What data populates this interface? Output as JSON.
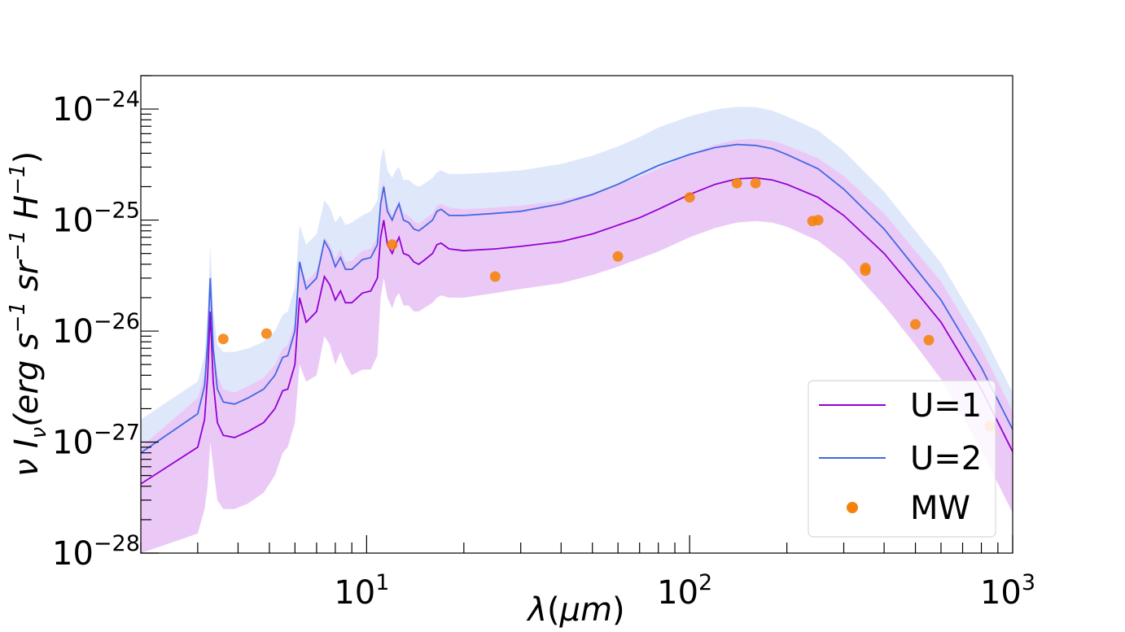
{
  "chart_data": {
    "type": "line",
    "x_scale": "log",
    "y_scale": "log",
    "xlim": [
      2,
      1000
    ],
    "ylim": [
      1e-28,
      2e-24
    ],
    "xlabel": "λ(μm)",
    "ylabel": "ν I_ν(erg s^-1 sr^-1 H^-1)",
    "x_ticks": [
      {
        "value": 10,
        "base": "10",
        "exp": "1"
      },
      {
        "value": 100,
        "base": "10",
        "exp": "2"
      },
      {
        "value": 1000,
        "base": "10",
        "exp": "3"
      }
    ],
    "y_ticks": [
      {
        "value": 1e-28,
        "base": "10",
        "exp": "−28"
      },
      {
        "value": 1e-27,
        "base": "10",
        "exp": "−27"
      },
      {
        "value": 1e-26,
        "base": "10",
        "exp": "−26"
      },
      {
        "value": 1e-25,
        "base": "10",
        "exp": "−25"
      },
      {
        "value": 1e-24,
        "base": "10",
        "exp": "−24"
      }
    ],
    "legend_position": "lower-right",
    "grid": false,
    "x": [
      2.0,
      3.0,
      3.15,
      3.22,
      3.28,
      3.35,
      3.45,
      3.6,
      3.9,
      4.3,
      4.8,
      5.2,
      5.5,
      5.7,
      6.0,
      6.2,
      6.5,
      7.0,
      7.4,
      7.7,
      8.0,
      8.3,
      8.6,
      9.0,
      9.7,
      10.3,
      10.8,
      11.05,
      11.3,
      11.6,
      12.0,
      12.3,
      12.6,
      13.0,
      13.5,
      14.0,
      14.5,
      15.0,
      16.0,
      16.5,
      17.0,
      18.0,
      20.0,
      25.0,
      30.0,
      40.0,
      50.0,
      60.0,
      70.0,
      80.0,
      100.0,
      120.0,
      140.0,
      160.0,
      180.0,
      200.0,
      250.0,
      300.0,
      400.0,
      500.0,
      600.0,
      800.0,
      1000.0
    ],
    "series": [
      {
        "name": "U=1",
        "color": "#9400d3",
        "band_color": "#da9df0",
        "y": [
          4.2e-28,
          9e-28,
          1.6e-27,
          4e-27,
          1.5e-26,
          3.5e-27,
          1.5e-27,
          1.15e-27,
          1.1e-27,
          1.25e-27,
          1.5e-27,
          2e-27,
          2.9e-27,
          3e-27,
          5e-27,
          2e-26,
          1.2e-26,
          1.5e-26,
          3.1e-26,
          2.6e-26,
          1.9e-26,
          2.3e-26,
          1.8e-26,
          1.8e-26,
          2.2e-26,
          2.3e-26,
          3e-26,
          7e-26,
          1e-25,
          6e-26,
          5e-26,
          6e-26,
          7e-26,
          5e-26,
          4.8e-26,
          4.2e-26,
          4e-26,
          4.3e-26,
          5e-26,
          6e-26,
          6.2e-26,
          5.5e-26,
          5.3e-26,
          5.5e-26,
          5.8e-26,
          6.4e-26,
          7.5e-26,
          9e-26,
          1.05e-25,
          1.25e-25,
          1.7e-25,
          2.1e-25,
          2.35e-25,
          2.4e-25,
          2.3e-25,
          2.1e-25,
          1.6e-25,
          1.1e-25,
          5e-26,
          2.3e-26,
          1.2e-26,
          3e-27,
          8.2e-28
        ],
        "y_low": [
          1e-28,
          1.5e-28,
          2.5e-28,
          4e-28,
          1e-27,
          6e-28,
          3e-28,
          2.5e-28,
          2.5e-28,
          2.8e-28,
          3.5e-28,
          5e-28,
          8e-28,
          9e-28,
          1.5e-27,
          5e-27,
          3.5e-27,
          4e-27,
          9e-27,
          7.5e-27,
          5e-27,
          6.5e-27,
          5e-27,
          4e-27,
          4.5e-27,
          4.5e-27,
          6e-27,
          2e-26,
          3e-26,
          2e-26,
          1.6e-26,
          2e-26,
          2.2e-26,
          1.7e-26,
          1.7e-26,
          1.5e-26,
          1.5e-26,
          1.6e-26,
          1.8e-26,
          2e-26,
          2.1e-26,
          2e-26,
          2e-26,
          2.2e-26,
          2.4e-26,
          2.7e-26,
          3.2e-26,
          3.8e-26,
          4.5e-26,
          5.2e-26,
          7e-26,
          8.5e-26,
          9.5e-26,
          9.8e-26,
          9.5e-26,
          8.7e-26,
          6.5e-26,
          4.3e-26,
          1.7e-26,
          7.5e-27,
          3.7e-27,
          8.5e-28,
          2.3e-28
        ],
        "y_high": [
          9e-28,
          2.5e-27,
          4e-27,
          9e-27,
          3.5e-26,
          8.5e-27,
          4e-27,
          3e-27,
          2.8e-27,
          3.2e-27,
          3.8e-27,
          5e-27,
          7e-27,
          7.5e-27,
          1.2e-26,
          4.5e-26,
          2.8e-26,
          3.5e-26,
          7e-26,
          6e-26,
          4.5e-26,
          5.5e-26,
          4.2e-26,
          4.3e-26,
          5.3e-26,
          5.5e-26,
          7e-26,
          1.6e-25,
          2.3e-25,
          1.4e-25,
          1.1e-25,
          1.3e-25,
          1.5e-25,
          1.15e-25,
          1.1e-25,
          9.8e-26,
          9.3e-26,
          1e-25,
          1.15e-25,
          1.35e-25,
          1.4e-25,
          1.3e-25,
          1.25e-25,
          1.3e-25,
          1.35e-25,
          1.5e-25,
          1.75e-25,
          2.1e-25,
          2.45e-25,
          2.9e-25,
          3.9e-25,
          4.8e-25,
          5.3e-25,
          5.4e-25,
          5.2e-25,
          4.7e-25,
          3.6e-25,
          2.5e-25,
          1.15e-25,
          5.3e-26,
          2.8e-26,
          7e-27,
          1.9e-27
        ]
      },
      {
        "name": "U=2",
        "color": "#4169e1",
        "band_color": "#b3c6f3",
        "y": [
          8e-28,
          1.8e-27,
          3.2e-27,
          8e-27,
          3e-26,
          7e-27,
          3e-27,
          2.3e-27,
          2.2e-27,
          2.5e-27,
          3e-27,
          4e-27,
          5.8e-27,
          6e-27,
          1e-26,
          4.2e-26,
          2.4e-26,
          3e-26,
          6.5e-26,
          5.3e-26,
          3.8e-26,
          4.6e-26,
          3.6e-26,
          3.6e-26,
          4.4e-26,
          4.6e-26,
          6e-26,
          1.4e-25,
          2e-25,
          1.2e-25,
          1e-25,
          1.2e-25,
          1.4e-25,
          1e-25,
          9.5e-26,
          8.3e-26,
          8e-26,
          8.6e-26,
          1e-25,
          1.2e-25,
          1.25e-25,
          1.1e-25,
          1.1e-25,
          1.15e-25,
          1.2e-25,
          1.4e-25,
          1.7e-25,
          2.1e-25,
          2.6e-25,
          3.1e-25,
          3.9e-25,
          4.5e-25,
          4.8e-25,
          4.7e-25,
          4.4e-25,
          3.9e-25,
          2.9e-25,
          1.9e-25,
          8.3e-26,
          3.7e-26,
          1.9e-26,
          4.7e-27,
          1.3e-27
        ],
        "y_high": [
          1.6e-27,
          3.5e-27,
          6e-27,
          1.5e-26,
          6e-26,
          1.6e-26,
          7.5e-27,
          6.5e-27,
          6.5e-27,
          7e-27,
          8e-27,
          1e-26,
          1.4e-26,
          1.5e-26,
          2.5e-26,
          9e-26,
          6e-26,
          7.5e-26,
          1.5e-25,
          1.3e-25,
          9.5e-26,
          1.1e-25,
          9e-26,
          9.5e-26,
          1.1e-25,
          1.2e-25,
          1.5e-25,
          3.5e-25,
          4.5e-25,
          2.8e-25,
          2.4e-25,
          2.8e-25,
          3e-25,
          2.3e-25,
          2.3e-25,
          2.1e-25,
          2e-25,
          2.1e-25,
          2.4e-25,
          2.7e-25,
          2.8e-25,
          2.6e-25,
          2.6e-25,
          2.7e-25,
          2.8e-25,
          3.2e-25,
          3.8e-25,
          4.6e-25,
          5.6e-25,
          6.8e-25,
          8.6e-25,
          9.9e-25,
          1.05e-24,
          1.04e-24,
          9.7e-25,
          8.6e-25,
          6.4e-25,
          4.2e-25,
          1.8e-25,
          8e-26,
          4.1e-26,
          1e-26,
          2.8e-27
        ]
      }
    ],
    "mw_points": {
      "name": "MW",
      "color": "#f5820d",
      "x": [
        3.6,
        4.9,
        12,
        25,
        60,
        100,
        140,
        160,
        240,
        250,
        350,
        350,
        500,
        550,
        850
      ],
      "y": [
        8.5e-27,
        9.5e-27,
        6e-26,
        3.1e-26,
        4.7e-26,
        1.6e-25,
        2.15e-25,
        2.15e-25,
        9.8e-26,
        1e-25,
        3.7e-26,
        3.5e-26,
        1.15e-26,
        8.3e-27,
        1.4e-27
      ]
    }
  }
}
